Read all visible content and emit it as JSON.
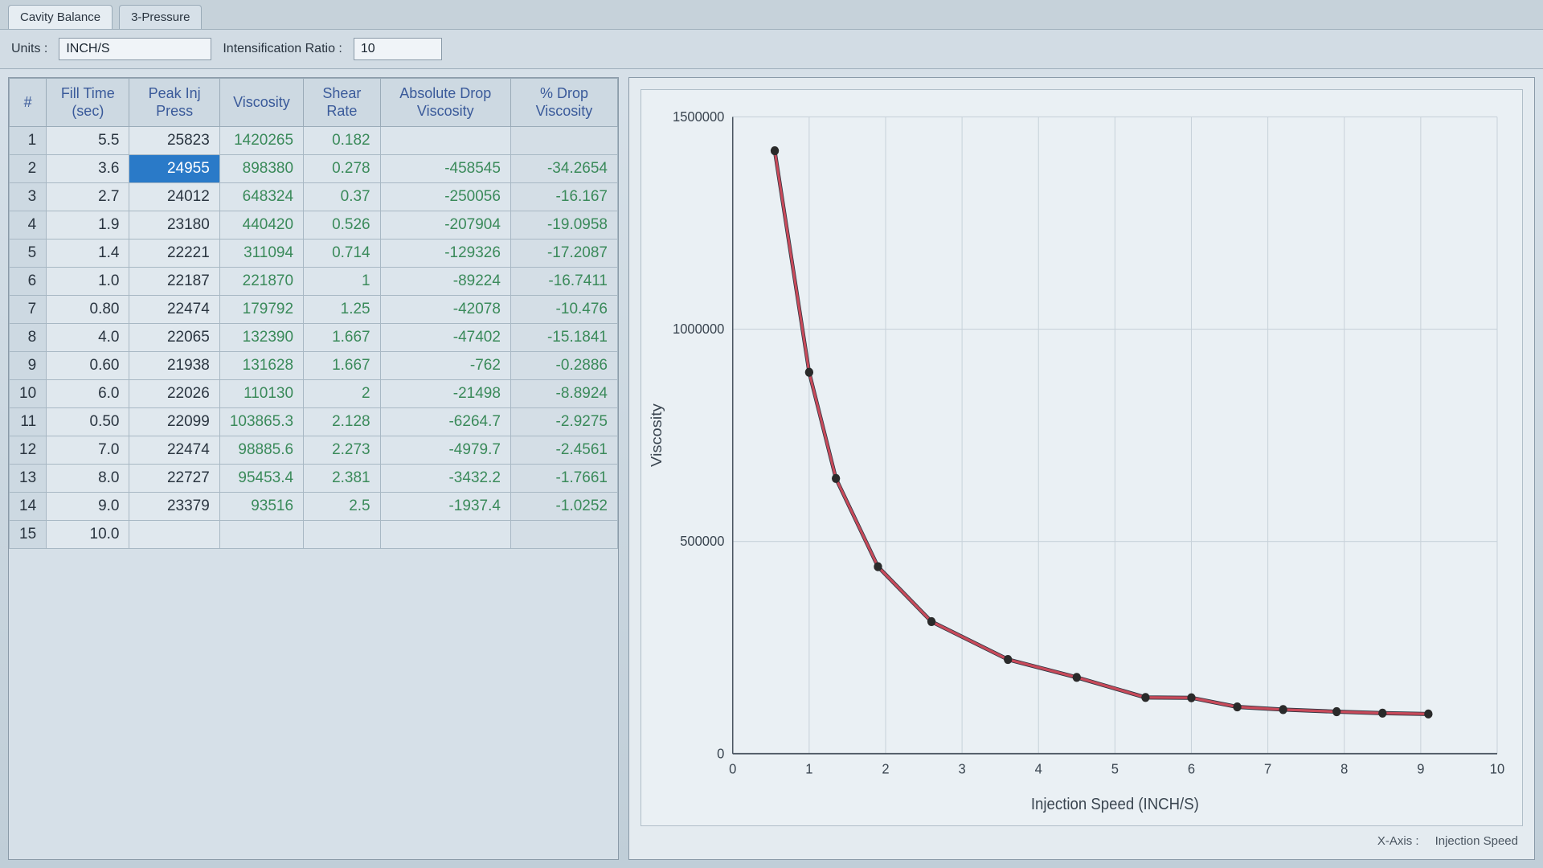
{
  "tabs": [
    {
      "label": "Cavity Balance"
    },
    {
      "label": "3-Pressure"
    }
  ],
  "toolbar": {
    "units_label": "Units :",
    "units_value": "INCH/S",
    "ratio_label": "Intensification Ratio :",
    "ratio_value": "10"
  },
  "table": {
    "headers": {
      "idx": "#",
      "time": "Fill Time (sec)",
      "press": "Peak Inj Press",
      "visc": "Viscosity",
      "shear": "Shear Rate",
      "absdrop": "Absolute Drop Viscosity",
      "pctdrop": "% Drop Viscosity"
    },
    "rows": [
      {
        "idx": "1",
        "time": "5.5",
        "press": "25823",
        "visc": "1420265",
        "shear": "0.182",
        "absdrop": "",
        "pctdrop": ""
      },
      {
        "idx": "2",
        "time": "3.6",
        "press": "24955",
        "visc": "898380",
        "shear": "0.278",
        "absdrop": "-458545",
        "pctdrop": "-34.2654",
        "selected": true
      },
      {
        "idx": "3",
        "time": "2.7",
        "press": "24012",
        "visc": "648324",
        "shear": "0.37",
        "absdrop": "-250056",
        "pctdrop": "-16.167"
      },
      {
        "idx": "4",
        "time": "1.9",
        "press": "23180",
        "visc": "440420",
        "shear": "0.526",
        "absdrop": "-207904",
        "pctdrop": "-19.0958"
      },
      {
        "idx": "5",
        "time": "1.4",
        "press": "22221",
        "visc": "311094",
        "shear": "0.714",
        "absdrop": "-129326",
        "pctdrop": "-17.2087"
      },
      {
        "idx": "6",
        "time": "1.0",
        "press": "22187",
        "visc": "221870",
        "shear": "1",
        "absdrop": "-89224",
        "pctdrop": "-16.7411"
      },
      {
        "idx": "7",
        "time": "0.80",
        "press": "22474",
        "visc": "179792",
        "shear": "1.25",
        "absdrop": "-42078",
        "pctdrop": "-10.476"
      },
      {
        "idx": "8",
        "time": "4.0",
        "press": "22065",
        "visc": "132390",
        "shear": "1.667",
        "absdrop": "-47402",
        "pctdrop": "-15.1841"
      },
      {
        "idx": "9",
        "time": "0.60",
        "press": "21938",
        "visc": "131628",
        "shear": "1.667",
        "absdrop": "-762",
        "pctdrop": "-0.2886"
      },
      {
        "idx": "10",
        "time": "6.0",
        "press": "22026",
        "visc": "110130",
        "shear": "2",
        "absdrop": "-21498",
        "pctdrop": "-8.8924"
      },
      {
        "idx": "11",
        "time": "0.50",
        "press": "22099",
        "visc": "103865.3",
        "shear": "2.128",
        "absdrop": "-6264.7",
        "pctdrop": "-2.9275"
      },
      {
        "idx": "12",
        "time": "7.0",
        "press": "22474",
        "visc": "98885.6",
        "shear": "2.273",
        "absdrop": "-4979.7",
        "pctdrop": "-2.4561"
      },
      {
        "idx": "13",
        "time": "8.0",
        "press": "22727",
        "visc": "95453.4",
        "shear": "2.381",
        "absdrop": "-3432.2",
        "pctdrop": "-1.7661"
      },
      {
        "idx": "14",
        "time": "9.0",
        "press": "23379",
        "visc": "93516",
        "shear": "2.5",
        "absdrop": "-1937.4",
        "pctdrop": "-1.0252"
      },
      {
        "idx": "15",
        "time": "10.0",
        "press": "",
        "visc": "",
        "shear": "",
        "absdrop": "",
        "pctdrop": ""
      }
    ]
  },
  "chart": {
    "type": "line",
    "ylabel": "Viscosity",
    "xlabel": "Injection Speed (INCH/S)",
    "ylim": [
      0,
      1500000
    ],
    "yticks": [
      0,
      500000,
      1000000,
      1500000
    ],
    "xlim": [
      0,
      10
    ],
    "xticks": [
      0,
      1,
      2,
      3,
      4,
      5,
      6,
      7,
      8,
      9,
      10
    ],
    "line_color": "#c84a5a",
    "line_width": 3,
    "marker_color": "#2a2a2a",
    "marker_size": 5,
    "background_color": "#eaf0f4",
    "grid_color": "#c8d2da",
    "data": [
      {
        "x": 0.55,
        "y": 1420265
      },
      {
        "x": 1.0,
        "y": 898380
      },
      {
        "x": 1.35,
        "y": 648324
      },
      {
        "x": 1.9,
        "y": 440420
      },
      {
        "x": 2.6,
        "y": 311094
      },
      {
        "x": 3.6,
        "y": 221870
      },
      {
        "x": 4.5,
        "y": 179792
      },
      {
        "x": 5.4,
        "y": 132390
      },
      {
        "x": 6.0,
        "y": 131628
      },
      {
        "x": 6.6,
        "y": 110130
      },
      {
        "x": 7.2,
        "y": 103865
      },
      {
        "x": 7.9,
        "y": 98885
      },
      {
        "x": 8.5,
        "y": 95453
      },
      {
        "x": 9.1,
        "y": 93516
      }
    ],
    "footer": {
      "xaxis_label": "X-Axis :",
      "xaxis_value": "Injection Speed"
    }
  }
}
